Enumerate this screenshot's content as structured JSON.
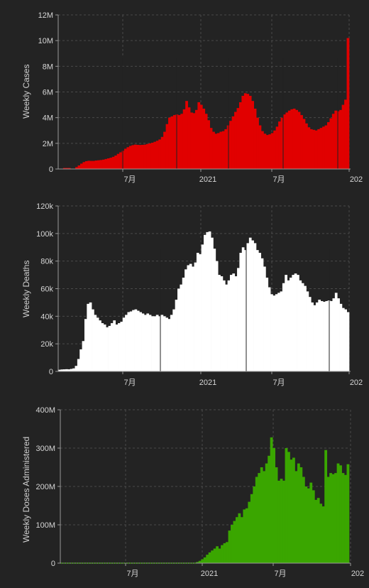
{
  "chart_data": [
    {
      "type": "bar",
      "ylabel": "Weekly Cases",
      "color": "#e10000",
      "ylim": [
        0,
        12000000
      ],
      "yticks": [
        0,
        2000000,
        4000000,
        6000000,
        8000000,
        10000000,
        12000000
      ],
      "yticklabels": [
        "0",
        "2M",
        "4M",
        "6M",
        "8M",
        "10M",
        "12M"
      ],
      "xtick_labels": [
        "7月",
        "2021",
        "7月",
        "202"
      ],
      "values": [
        0,
        0,
        80000,
        80000,
        80000,
        0,
        0,
        150000,
        280000,
        420000,
        540000,
        610000,
        640000,
        630000,
        630000,
        660000,
        680000,
        700000,
        730000,
        780000,
        830000,
        880000,
        950000,
        1050000,
        1180000,
        1300000,
        1420000,
        1580000,
        1700000,
        1800000,
        1860000,
        1900000,
        1880000,
        1870000,
        1880000,
        1900000,
        1950000,
        2000000,
        2050000,
        2120000,
        2200000,
        2300000,
        2500000,
        2900000,
        3500000,
        4000000,
        4100000,
        4200000,
        4250000,
        4200000,
        4300000,
        4650000,
        5300000,
        4800000,
        4400000,
        4350000,
        4600000,
        5200000,
        5000000,
        4700000,
        4300000,
        3800000,
        3200000,
        2900000,
        2750000,
        2800000,
        2900000,
        2950000,
        3100000,
        3400000,
        3750000,
        4100000,
        4450000,
        4750000,
        5200000,
        5700000,
        5900000,
        5850000,
        5700000,
        5300000,
        4700000,
        4000000,
        3400000,
        2950000,
        2750000,
        2650000,
        2700000,
        2800000,
        3000000,
        3300000,
        3700000,
        4000000,
        4250000,
        4400000,
        4550000,
        4650000,
        4700000,
        4600000,
        4450000,
        4200000,
        3900000,
        3550000,
        3250000,
        3100000,
        3050000,
        3000000,
        3100000,
        3200000,
        3300000,
        3400000,
        3650000,
        3950000,
        4300000,
        4550000,
        4500000,
        4600000,
        5000000,
        5400000,
        10200000
      ]
    },
    {
      "type": "bar",
      "ylabel": "Weekly Deaths",
      "color": "#ffffff",
      "ylim": [
        0,
        120000
      ],
      "yticks": [
        0,
        20000,
        40000,
        60000,
        80000,
        100000,
        120000
      ],
      "yticklabels": [
        "0",
        "20k",
        "40k",
        "60k",
        "80k",
        "100k",
        "120k"
      ],
      "xtick_labels": [
        "7月",
        "2021",
        "7月",
        "202"
      ],
      "values": [
        1200,
        1400,
        1500,
        1600,
        1500,
        1800,
        2200,
        4000,
        9000,
        16000,
        22000,
        38000,
        49000,
        50000,
        45000,
        41000,
        39000,
        37000,
        35000,
        34000,
        32000,
        33000,
        35000,
        37000,
        34000,
        35000,
        36000,
        39000,
        41000,
        43000,
        43500,
        44500,
        45000,
        44000,
        43000,
        42000,
        41000,
        42000,
        41000,
        40000,
        40000,
        41000,
        40000,
        41000,
        40000,
        39000,
        38000,
        41000,
        45000,
        52000,
        60000,
        63000,
        68000,
        74000,
        77000,
        78000,
        76000,
        79000,
        86000,
        85000,
        92000,
        99000,
        101000,
        101500,
        97000,
        89000,
        80000,
        70000,
        69000,
        66000,
        63000,
        66000,
        70000,
        71000,
        69000,
        75000,
        86000,
        90000,
        88000,
        93000,
        97000,
        95000,
        93000,
        88000,
        86000,
        82000,
        76000,
        68000,
        61000,
        56000,
        55000,
        56000,
        57000,
        58000,
        64000,
        70000,
        66000,
        68000,
        70000,
        71000,
        70000,
        66000,
        64000,
        62000,
        58000,
        54000,
        50000,
        48000,
        50000,
        52000,
        51000,
        50500,
        51000,
        51500,
        51000,
        53000,
        57000,
        53000,
        49000,
        46000,
        45000,
        43000
      ]
    },
    {
      "type": "bar",
      "ylabel": "Weekly Doses Administered",
      "color": "#3aa600",
      "ylim": [
        0,
        400000000
      ],
      "yticks": [
        0,
        100000000,
        200000000,
        300000000,
        400000000
      ],
      "yticklabels": [
        "0",
        "100M",
        "200M",
        "300M",
        "400M"
      ],
      "xtick_labels": [
        "7月",
        "2021",
        "7月",
        "202"
      ],
      "values": [
        0,
        0,
        0,
        0,
        0,
        0,
        0,
        0,
        0,
        0,
        0,
        0,
        0,
        0,
        0,
        0,
        0,
        0,
        0,
        0,
        0,
        0,
        0,
        0,
        0,
        0,
        0,
        0,
        0,
        0,
        0,
        0,
        0,
        0,
        0,
        0,
        0,
        0,
        0,
        0,
        0,
        0,
        0,
        0,
        0,
        0,
        0,
        0,
        0,
        0,
        0,
        0,
        0,
        0,
        0,
        3000000,
        6000000,
        10000000,
        15000000,
        22000000,
        28000000,
        33000000,
        38000000,
        44000000,
        38000000,
        47000000,
        52000000,
        55000000,
        85000000,
        100000000,
        110000000,
        120000000,
        130000000,
        120000000,
        140000000,
        143000000,
        160000000,
        180000000,
        200000000,
        225000000,
        235000000,
        250000000,
        240000000,
        260000000,
        280000000,
        328000000,
        300000000,
        250000000,
        215000000,
        220000000,
        215000000,
        300000000,
        290000000,
        270000000,
        275000000,
        240000000,
        260000000,
        250000000,
        225000000,
        200000000,
        195000000,
        210000000,
        190000000,
        165000000,
        170000000,
        155000000,
        148000000,
        295000000,
        225000000,
        235000000,
        232000000,
        235000000,
        260000000,
        255000000,
        235000000,
        230000000,
        258000000
      ]
    }
  ]
}
